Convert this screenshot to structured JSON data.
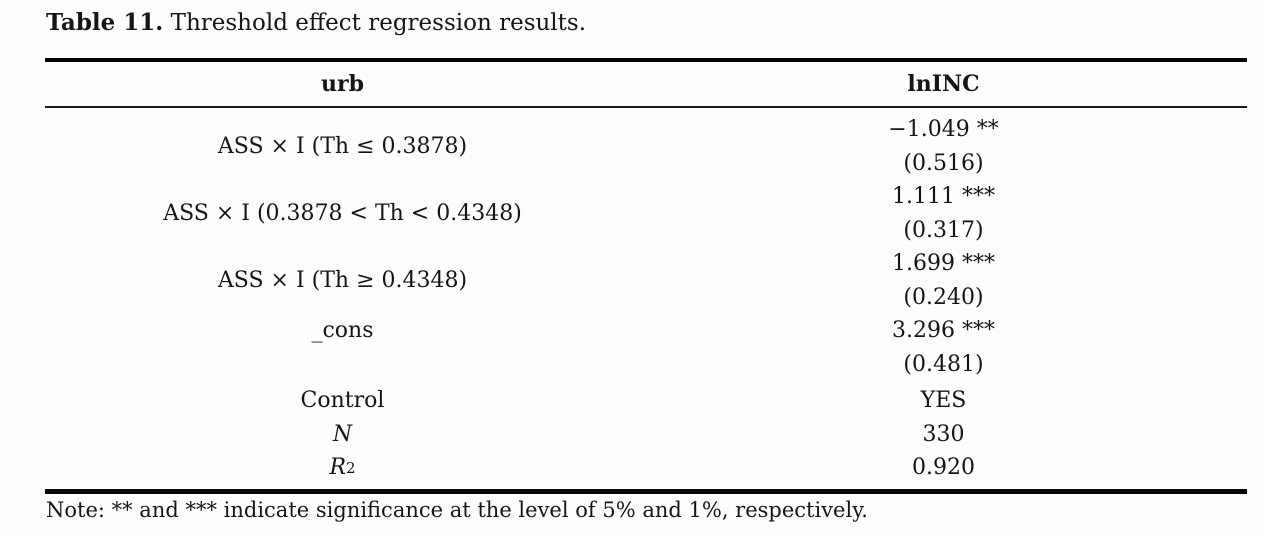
{
  "title": {
    "prefix": "Table 11.",
    "text": "Threshold effect regression results."
  },
  "table": {
    "headers": {
      "col1": "urb",
      "col2": "lnINC"
    },
    "rows": [
      {
        "label": "ASS × I (Th ≤ 0.3878)",
        "coef": "−1.049 **",
        "se": "(0.516)"
      },
      {
        "label": "ASS × I (0.3878 < Th < 0.4348)",
        "coef": "1.111 ***",
        "se": "(0.317)"
      },
      {
        "label": "ASS × I (Th ≥ 0.4348)",
        "coef": "1.699 ***",
        "se": "(0.240)"
      },
      {
        "label": "_cons",
        "coef": "3.296 ***",
        "se": "(0.481)"
      },
      {
        "label": "Control",
        "value": "YES"
      },
      {
        "label": "N",
        "value": "330"
      },
      {
        "label": "R",
        "label_sup": "2",
        "value": "0.920"
      }
    ]
  },
  "note": "Note: ** and *** indicate significance at the level of 5% and 1%, respectively.",
  "colors": {
    "background": "#fdfdfd",
    "text": "#151515",
    "rule": "#060606"
  }
}
